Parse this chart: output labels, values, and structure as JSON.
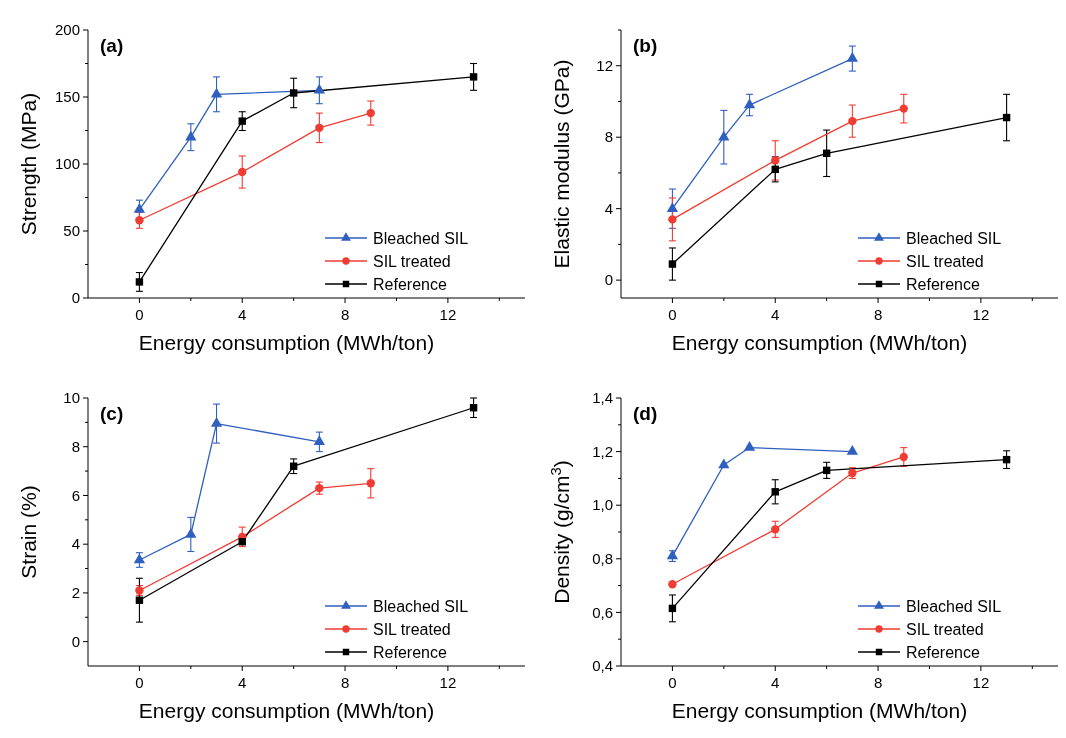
{
  "chart_data": [
    {
      "type": "line",
      "annotations": [
        "(a)"
      ],
      "xlabel": "Energy consumption (MWh/ton)",
      "ylabel": "Strength (MPa)",
      "xlim": [
        -2,
        15
      ],
      "xticks": [
        0,
        {
          "value": 2,
          "label": null
        },
        4,
        {
          "value": 6,
          "label": null
        },
        8,
        {
          "value": 10,
          "label": null
        },
        12,
        {
          "value": 14,
          "label": null
        }
      ],
      "ylim": [
        0,
        200
      ],
      "yticks": [
        0,
        {
          "value": 25,
          "label": null
        },
        50,
        {
          "value": 75,
          "label": null
        },
        100,
        {
          "value": 125,
          "label": null
        },
        150,
        {
          "value": 175,
          "label": null
        },
        200
      ],
      "legend": "bottom right",
      "series": [
        {
          "name": "Bleached SIL",
          "color": "#2f5fbf",
          "marker": "triangle",
          "x": [
            0,
            2,
            3,
            7
          ],
          "values": [
            66,
            120,
            152,
            155
          ],
          "errors": [
            7,
            10,
            13,
            10
          ]
        },
        {
          "name": "SIL treated",
          "color": "#f03c32",
          "marker": "circle",
          "x": [
            0,
            4,
            7,
            9
          ],
          "values": [
            58,
            94,
            127,
            138
          ],
          "errors": [
            6,
            12,
            11,
            9
          ]
        },
        {
          "name": "Reference",
          "color": "#000000",
          "marker": "square",
          "x": [
            0,
            4,
            6,
            13
          ],
          "values": [
            12,
            132,
            153,
            165
          ],
          "errors": [
            7,
            7,
            11,
            10
          ]
        }
      ]
    },
    {
      "type": "line",
      "annotations": [
        "(b)"
      ],
      "xlabel": "Energy consumption (MWh/ton)",
      "ylabel": "Elastic modulus (GPa)",
      "xlim": [
        -2,
        15
      ],
      "xticks": [
        0,
        {
          "value": 2,
          "label": null
        },
        4,
        {
          "value": 6,
          "label": null
        },
        8,
        {
          "value": 10,
          "label": null
        },
        12,
        {
          "value": 14,
          "label": null
        }
      ],
      "ylim": [
        -1,
        14
      ],
      "yticks": [
        0,
        {
          "value": 2,
          "label": null
        },
        4,
        {
          "value": 6,
          "label": null
        },
        8,
        {
          "value": 10,
          "label": null
        },
        12,
        {
          "value": 14,
          "label": null
        }
      ],
      "legend": "bottom right",
      "series": [
        {
          "name": "Bleached SIL",
          "color": "#2f5fbf",
          "marker": "triangle",
          "x": [
            0,
            2,
            3,
            7
          ],
          "values": [
            4.0,
            8.0,
            9.8,
            12.4
          ],
          "errors": [
            1.1,
            1.5,
            0.6,
            0.7
          ]
        },
        {
          "name": "SIL treated",
          "color": "#f03c32",
          "marker": "circle",
          "x": [
            0,
            4,
            7,
            9
          ],
          "values": [
            3.4,
            6.7,
            8.9,
            9.6
          ],
          "errors": [
            1.2,
            1.1,
            0.9,
            0.8
          ]
        },
        {
          "name": "Reference",
          "color": "#000000",
          "marker": "square",
          "x": [
            0,
            4,
            6,
            13
          ],
          "values": [
            0.9,
            6.2,
            7.1,
            9.1
          ],
          "errors": [
            0.9,
            0.7,
            1.3,
            1.3
          ]
        }
      ]
    },
    {
      "type": "line",
      "annotations": [
        "(c)"
      ],
      "xlabel": "Energy consumption (MWh/ton)",
      "ylabel": "Strain (%)",
      "xlim": [
        -2,
        15
      ],
      "xticks": [
        0,
        {
          "value": 2,
          "label": null
        },
        4,
        {
          "value": 6,
          "label": null
        },
        8,
        {
          "value": 10,
          "label": null
        },
        12,
        {
          "value": 14,
          "label": null
        }
      ],
      "ylim": [
        -1,
        10
      ],
      "yticks": [
        0,
        {
          "value": 1,
          "label": null
        },
        2,
        {
          "value": 3,
          "label": null
        },
        4,
        {
          "value": 5,
          "label": null
        },
        6,
        {
          "value": 7,
          "label": null
        },
        8,
        {
          "value": 9,
          "label": null
        },
        10
      ],
      "legend": "bottom right",
      "series": [
        {
          "name": "Bleached SIL",
          "color": "#2f5fbf",
          "marker": "triangle",
          "x": [
            0,
            2,
            3,
            7
          ],
          "values": [
            3.35,
            4.4,
            8.95,
            8.2
          ],
          "errors": [
            0.3,
            0.7,
            0.8,
            0.4
          ]
        },
        {
          "name": "SIL treated",
          "color": "#f03c32",
          "marker": "circle",
          "x": [
            0,
            4,
            7,
            9
          ],
          "values": [
            2.1,
            4.3,
            6.3,
            6.5
          ],
          "errors": [
            0.2,
            0.4,
            0.25,
            0.6
          ]
        },
        {
          "name": "Reference",
          "color": "#000000",
          "marker": "square",
          "x": [
            0,
            4,
            6,
            13
          ],
          "values": [
            1.7,
            4.1,
            7.2,
            9.6
          ],
          "errors": [
            0.9,
            0.1,
            0.3,
            0.4
          ]
        }
      ]
    },
    {
      "type": "line",
      "annotations": [
        "(d)"
      ],
      "xlabel": "Energy consumption (MWh/ton)",
      "ylabel": "Density (g/cm$^{3}$)",
      "xlim": [
        -2,
        15
      ],
      "xticks": [
        0,
        {
          "value": 2,
          "label": null
        },
        4,
        {
          "value": 6,
          "label": null
        },
        8,
        {
          "value": 10,
          "label": null
        },
        12,
        {
          "value": 14,
          "label": null
        }
      ],
      "ylim": [
        0.4,
        1.4
      ],
      "yticks": [
        {
          "value": 0.4,
          "label": "0,4"
        },
        {
          "value": 0.5,
          "label": null
        },
        {
          "value": 0.6,
          "label": "0,6"
        },
        {
          "value": 0.7,
          "label": null
        },
        {
          "value": 0.8,
          "label": "0,8"
        },
        {
          "value": 0.9,
          "label": null
        },
        {
          "value": 1.0,
          "label": "1,0"
        },
        {
          "value": 1.1,
          "label": null
        },
        {
          "value": 1.2,
          "label": "1,2"
        },
        {
          "value": 1.3,
          "label": null
        },
        {
          "value": 1.4,
          "label": "1,4"
        }
      ],
      "legend": "bottom right",
      "series": [
        {
          "name": "Bleached SIL",
          "color": "#2f5fbf",
          "marker": "triangle",
          "x": [
            0,
            2,
            3,
            7
          ],
          "values": [
            0.81,
            1.15,
            1.215,
            1.2
          ],
          "errors": [
            0.02,
            null,
            null,
            null
          ]
        },
        {
          "name": "SIL treated",
          "color": "#f03c32",
          "marker": "circle",
          "x": [
            0,
            4,
            7,
            9
          ],
          "values": [
            0.705,
            0.91,
            1.12,
            1.18
          ],
          "errors": [
            0.005,
            0.03,
            0.02,
            0.035
          ]
        },
        {
          "name": "Reference",
          "color": "#000000",
          "marker": "square",
          "x": [
            0,
            4,
            6,
            13
          ],
          "values": [
            0.615,
            1.05,
            1.13,
            1.17
          ],
          "errors": [
            0.05,
            0.045,
            0.03,
            0.033
          ]
        }
      ]
    }
  ]
}
